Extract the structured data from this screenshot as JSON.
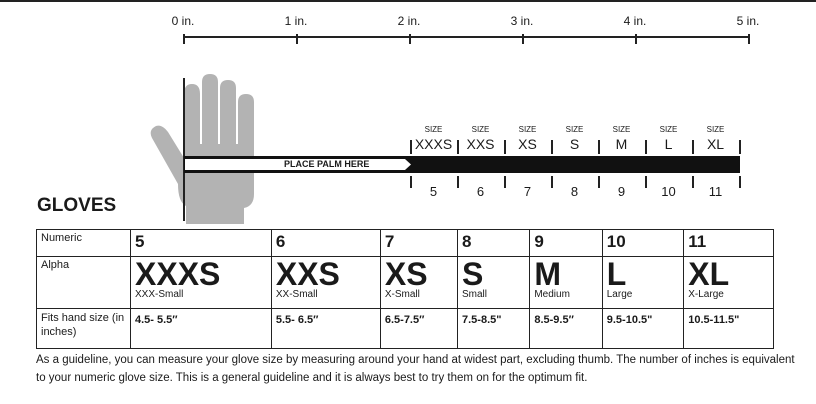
{
  "ruler": {
    "labels": [
      "0 in.",
      "1 in.",
      "2 in.",
      "3 in.",
      "4 in.",
      "5 in."
    ]
  },
  "guide": {
    "palm_label": "PLACE PALM HERE",
    "size_word": "SIZE",
    "sizes": [
      "XXXS",
      "XXS",
      "XS",
      "S",
      "M",
      "L",
      "XL"
    ],
    "numbers": [
      "5",
      "6",
      "7",
      "8",
      "9",
      "10",
      "11"
    ]
  },
  "title": "GLOVES",
  "table": {
    "row_labels": {
      "numeric": "Numeric",
      "alpha": "Alpha",
      "fits": "Fits hand size (in inches)"
    },
    "columns": [
      {
        "numeric": "5",
        "alpha": "XXXS",
        "alpha_full": "XXX-Small",
        "fits": "4.5- 5.5″"
      },
      {
        "numeric": "6",
        "alpha": "XXS",
        "alpha_full": "XX-Small",
        "fits": "5.5- 6.5″"
      },
      {
        "numeric": "7",
        "alpha": "XS",
        "alpha_full": "X-Small",
        "fits": "6.5-7.5″"
      },
      {
        "numeric": "8",
        "alpha": "S",
        "alpha_full": "Small",
        "fits": "7.5-8.5\""
      },
      {
        "numeric": "9",
        "alpha": "M",
        "alpha_full": "Medium",
        "fits": "8.5-9.5″"
      },
      {
        "numeric": "10",
        "alpha": "L",
        "alpha_full": "Large",
        "fits": "9.5-10.5\""
      },
      {
        "numeric": "11",
        "alpha": "XL",
        "alpha_full": "X-Large",
        "fits": "10.5-11.5\""
      }
    ]
  },
  "footnote": "As a guideline, you can measure your glove size by measuring around your hand at widest part, excluding thumb.  The number of inches is equivalent to your numeric glove size. This is a general guideline and it is always best to try them on for the optimum fit.",
  "colors": {
    "glove": "#b3b3b3",
    "ink": "#1a1a1a"
  }
}
